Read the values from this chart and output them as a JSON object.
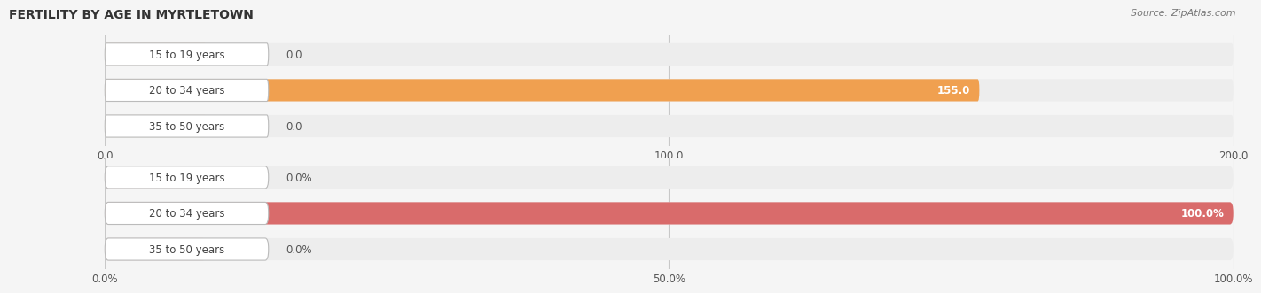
{
  "title": "FERTILITY BY AGE IN MYRTLETOWN",
  "source": "Source: ZipAtlas.com",
  "chart1": {
    "categories": [
      "15 to 19 years",
      "20 to 34 years",
      "35 to 50 years"
    ],
    "values": [
      0.0,
      155.0,
      0.0
    ],
    "xlim": [
      0,
      200
    ],
    "xticks": [
      0.0,
      100.0,
      200.0
    ],
    "xtick_labels": [
      "0.0",
      "100.0",
      "200.0"
    ],
    "bar_color": "#F0A050",
    "bar_color_dim": "#F5CC9A",
    "bar_bg_color": "#EDEDED",
    "bar_height": 0.62
  },
  "chart2": {
    "categories": [
      "15 to 19 years",
      "20 to 34 years",
      "35 to 50 years"
    ],
    "values": [
      0.0,
      100.0,
      0.0
    ],
    "xlim": [
      0,
      100
    ],
    "xticks": [
      0.0,
      50.0,
      100.0
    ],
    "xtick_labels": [
      "0.0%",
      "50.0%",
      "100.0%"
    ],
    "bar_color": "#D96B6B",
    "bar_color_dim": "#EDA8A8",
    "bar_bg_color": "#EDEDED",
    "bar_height": 0.62
  },
  "label_fontsize": 8.5,
  "value_fontsize": 8.5,
  "title_fontsize": 10,
  "fig_bg_color": "#F5F5F5",
  "label_bg": "#FFFFFF",
  "grid_color": "#C8C8C8"
}
